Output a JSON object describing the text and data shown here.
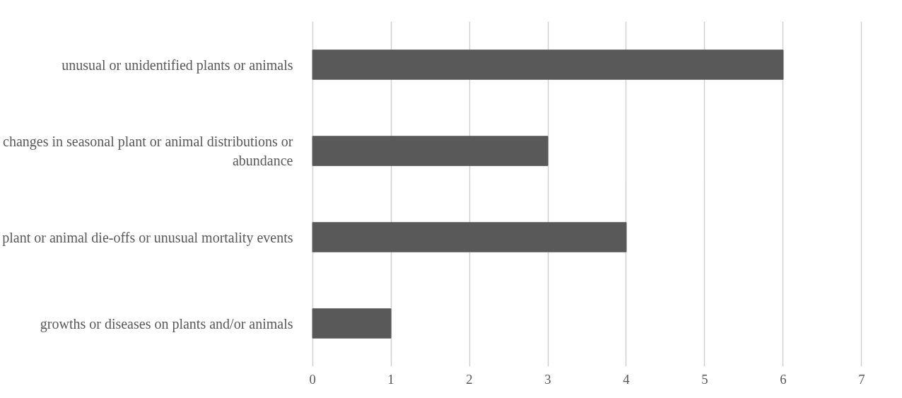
{
  "chart_data": {
    "type": "bar",
    "orientation": "horizontal",
    "categories": [
      "unusual or unidentified plants or animals",
      "changes in seasonal plant or animal distributions or abundance",
      "plant or animal die-offs or unusual mortality events",
      "growths or diseases on plants and/or animals"
    ],
    "values": [
      6,
      3,
      4,
      1
    ],
    "color": "#595959",
    "xlim": [
      0,
      7
    ],
    "xticks": [
      0,
      1,
      2,
      3,
      4,
      5,
      6,
      7
    ],
    "grid": "x"
  }
}
